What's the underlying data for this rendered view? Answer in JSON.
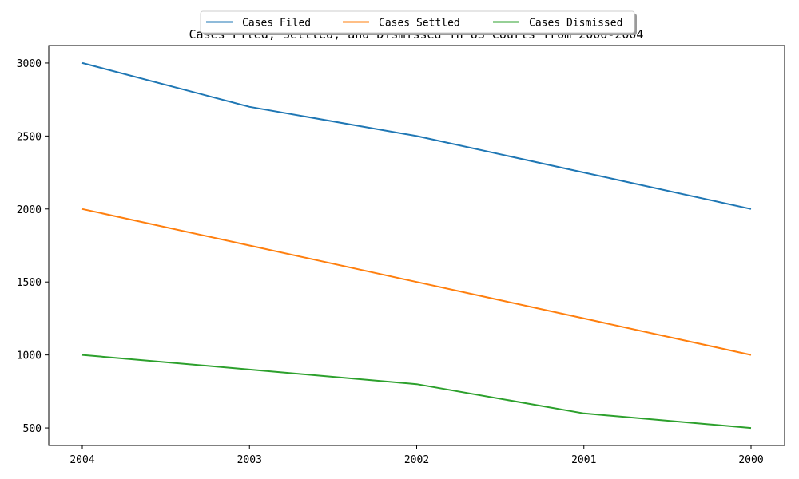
{
  "chart_data": {
    "type": "line",
    "title": "Cases Filed, Settled, and Dismissed in US Courts from 2000-2004",
    "xlabel": "",
    "ylabel": "",
    "categories": [
      "2004",
      "2003",
      "2002",
      "2001",
      "2000"
    ],
    "yticks": [
      500,
      1000,
      1500,
      2000,
      2500,
      3000
    ],
    "ylim": [
      380,
      3120
    ],
    "grid": false,
    "legend_position": "top-center",
    "series": [
      {
        "name": "Cases Filed",
        "values": [
          3000,
          2700,
          2500,
          2250,
          2000
        ],
        "color": "#1f77b4"
      },
      {
        "name": "Cases Settled",
        "values": [
          2000,
          1750,
          1500,
          1250,
          1000
        ],
        "color": "#ff7f0e"
      },
      {
        "name": "Cases Dismissed",
        "values": [
          1000,
          900,
          800,
          600,
          500
        ],
        "color": "#2ca02c"
      }
    ]
  }
}
